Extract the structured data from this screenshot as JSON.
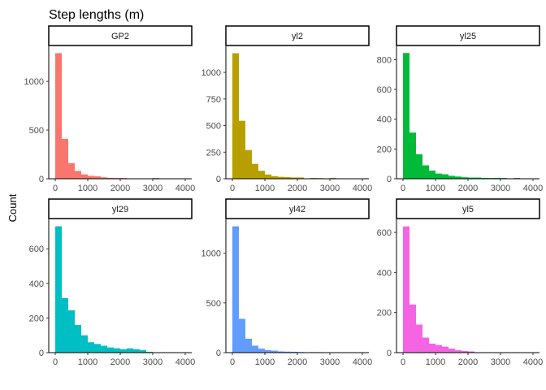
{
  "chart_data": {
    "type": "bar",
    "title": "Step lengths (m)",
    "ylabel": "Count",
    "xlabel": "",
    "bin_width": 200,
    "x_ticks": [
      0,
      1000,
      2000,
      3000,
      4000
    ],
    "xlim": [
      -200,
      4200
    ],
    "panels": [
      {
        "name": "GP2",
        "color": "#F8766D",
        "bins": [
          {
            "x": 0,
            "count": 1290
          },
          {
            "x": 200,
            "count": 410
          },
          {
            "x": 400,
            "count": 160
          },
          {
            "x": 600,
            "count": 80
          },
          {
            "x": 800,
            "count": 45
          },
          {
            "x": 1000,
            "count": 30
          },
          {
            "x": 1200,
            "count": 25
          },
          {
            "x": 1400,
            "count": 15
          },
          {
            "x": 1600,
            "count": 10
          },
          {
            "x": 1800,
            "count": 8
          },
          {
            "x": 2000,
            "count": 8
          },
          {
            "x": 3000,
            "count": 8
          }
        ],
        "y_ticks": [
          0,
          500,
          1000
        ],
        "ylim": [
          0,
          1360
        ]
      },
      {
        "name": "yl2",
        "color": "#B79F00",
        "bins": [
          {
            "x": 0,
            "count": 1180
          },
          {
            "x": 200,
            "count": 545
          },
          {
            "x": 400,
            "count": 270
          },
          {
            "x": 600,
            "count": 140
          },
          {
            "x": 800,
            "count": 75
          },
          {
            "x": 1000,
            "count": 40
          },
          {
            "x": 1200,
            "count": 25
          },
          {
            "x": 1400,
            "count": 18
          },
          {
            "x": 1600,
            "count": 15
          },
          {
            "x": 1800,
            "count": 12
          },
          {
            "x": 2000,
            "count": 12
          },
          {
            "x": 2400,
            "count": 8
          },
          {
            "x": 2600,
            "count": 6
          },
          {
            "x": 3000,
            "count": 8
          }
        ],
        "y_ticks": [
          0,
          250,
          500,
          750,
          1000
        ],
        "ylim": [
          0,
          1245
        ]
      },
      {
        "name": "yl25",
        "color": "#00BA38",
        "bins": [
          {
            "x": 0,
            "count": 845
          },
          {
            "x": 200,
            "count": 310
          },
          {
            "x": 400,
            "count": 165
          },
          {
            "x": 600,
            "count": 90
          },
          {
            "x": 800,
            "count": 55
          },
          {
            "x": 1000,
            "count": 35
          },
          {
            "x": 1200,
            "count": 30
          },
          {
            "x": 1400,
            "count": 20
          },
          {
            "x": 1600,
            "count": 15
          },
          {
            "x": 1800,
            "count": 10
          },
          {
            "x": 2000,
            "count": 8
          },
          {
            "x": 2200,
            "count": 8
          },
          {
            "x": 2400,
            "count": 6
          },
          {
            "x": 2600,
            "count": 5
          },
          {
            "x": 2800,
            "count": 6
          },
          {
            "x": 3000,
            "count": 5
          },
          {
            "x": 3400,
            "count": 5
          }
        ],
        "y_ticks": [
          0,
          200,
          400,
          600,
          800
        ],
        "ylim": [
          0,
          890
        ]
      },
      {
        "name": "yl29",
        "color": "#00BFC4",
        "bins": [
          {
            "x": 0,
            "count": 730
          },
          {
            "x": 200,
            "count": 315
          },
          {
            "x": 400,
            "count": 245
          },
          {
            "x": 600,
            "count": 160
          },
          {
            "x": 800,
            "count": 100
          },
          {
            "x": 1000,
            "count": 60
          },
          {
            "x": 1200,
            "count": 50
          },
          {
            "x": 1400,
            "count": 40
          },
          {
            "x": 1600,
            "count": 30
          },
          {
            "x": 1800,
            "count": 25
          },
          {
            "x": 2000,
            "count": 20
          },
          {
            "x": 2200,
            "count": 25
          },
          {
            "x": 2400,
            "count": 20
          },
          {
            "x": 2600,
            "count": 15
          },
          {
            "x": 2800,
            "count": 5
          }
        ],
        "y_ticks": [
          0,
          200,
          400,
          600
        ],
        "ylim": [
          0,
          770
        ]
      },
      {
        "name": "yl42",
        "color": "#619CFF",
        "bins": [
          {
            "x": 0,
            "count": 1270
          },
          {
            "x": 200,
            "count": 340
          },
          {
            "x": 400,
            "count": 140
          },
          {
            "x": 600,
            "count": 70
          },
          {
            "x": 800,
            "count": 40
          },
          {
            "x": 1000,
            "count": 25
          },
          {
            "x": 1200,
            "count": 20
          },
          {
            "x": 1400,
            "count": 12
          },
          {
            "x": 1600,
            "count": 10
          },
          {
            "x": 1800,
            "count": 8
          },
          {
            "x": 2000,
            "count": 6
          },
          {
            "x": 2400,
            "count": 5
          },
          {
            "x": 2600,
            "count": 5
          }
        ],
        "y_ticks": [
          0,
          500,
          1000
        ],
        "ylim": [
          0,
          1340
        ]
      },
      {
        "name": "yl5",
        "color": "#F564E3",
        "bins": [
          {
            "x": 0,
            "count": 630
          },
          {
            "x": 200,
            "count": 240
          },
          {
            "x": 400,
            "count": 140
          },
          {
            "x": 600,
            "count": 75
          },
          {
            "x": 800,
            "count": 45
          },
          {
            "x": 1000,
            "count": 38
          },
          {
            "x": 1200,
            "count": 30
          },
          {
            "x": 1400,
            "count": 20
          },
          {
            "x": 1600,
            "count": 12
          },
          {
            "x": 1800,
            "count": 8
          },
          {
            "x": 2000,
            "count": 6
          }
        ],
        "y_ticks": [
          0,
          200,
          400,
          600
        ],
        "ylim": [
          0,
          665
        ]
      }
    ]
  }
}
